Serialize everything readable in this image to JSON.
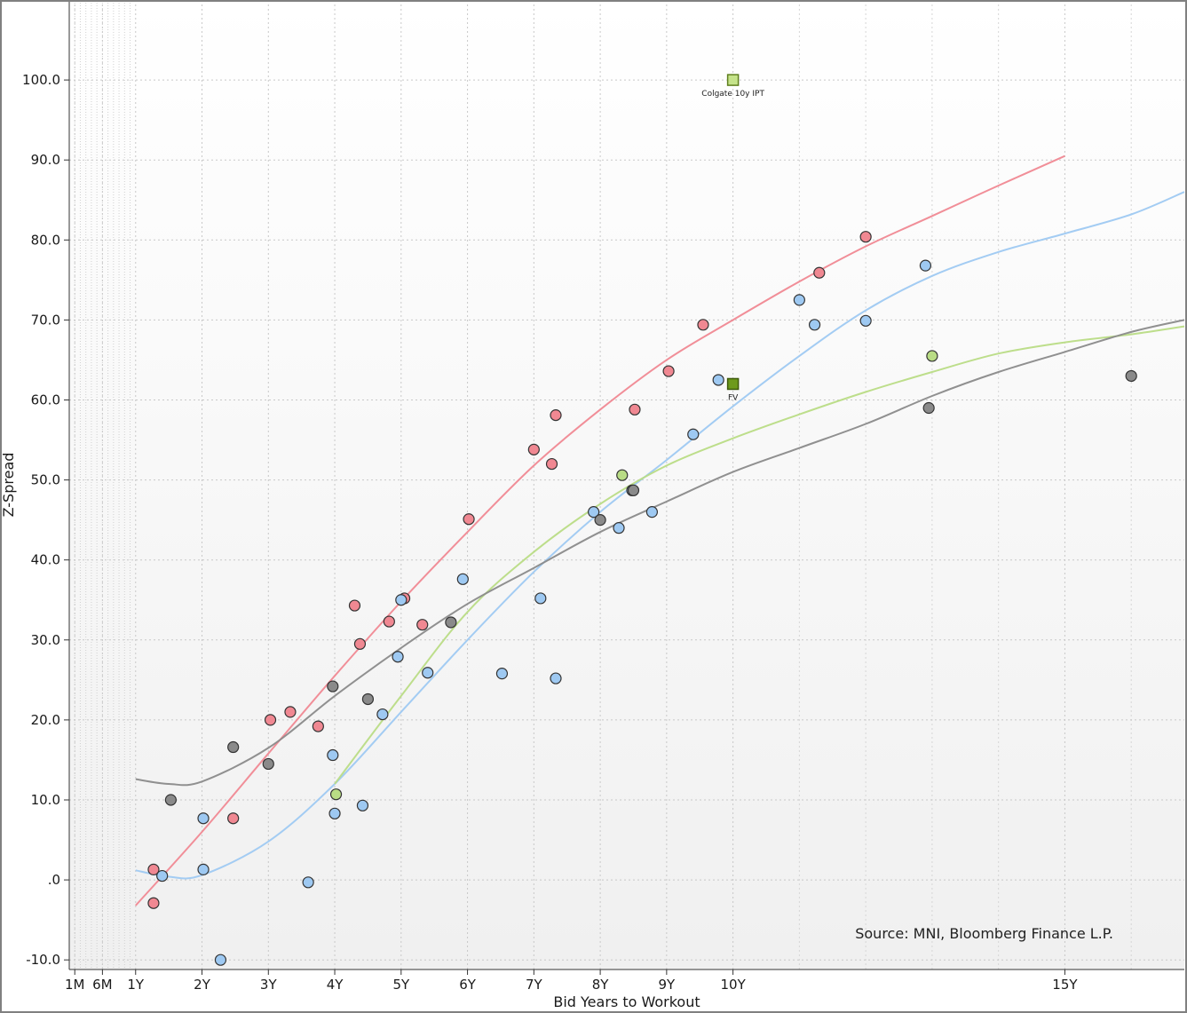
{
  "chart_data": {
    "type": "scatter",
    "title": "",
    "xlabel": "Bid Years to Workout",
    "ylabel": "Z-Spread",
    "xlim": [
      0,
      16.8
    ],
    "ylim": [
      -11.2,
      110
    ],
    "x_ticks": [
      {
        "value": 0.0833,
        "label": "1M"
      },
      {
        "value": 0.5,
        "label": "6M"
      },
      {
        "value": 1,
        "label": "1Y"
      },
      {
        "value": 2,
        "label": "2Y"
      },
      {
        "value": 3,
        "label": "3Y"
      },
      {
        "value": 4,
        "label": "4Y"
      },
      {
        "value": 5,
        "label": "5Y"
      },
      {
        "value": 6,
        "label": "6Y"
      },
      {
        "value": 7,
        "label": "7Y"
      },
      {
        "value": 8,
        "label": "8Y"
      },
      {
        "value": 9,
        "label": "9Y"
      },
      {
        "value": 10,
        "label": "10Y"
      },
      {
        "value": 15,
        "label": "15Y"
      }
    ],
    "y_ticks": [
      {
        "value": -10,
        "label": "-10.0"
      },
      {
        "value": 0,
        "label": ".0"
      },
      {
        "value": 10,
        "label": "10.0"
      },
      {
        "value": 20,
        "label": "20.0"
      },
      {
        "value": 30,
        "label": "30.0"
      },
      {
        "value": 40,
        "label": "40.0"
      },
      {
        "value": 50,
        "label": "50.0"
      },
      {
        "value": 60,
        "label": "60.0"
      },
      {
        "value": 70,
        "label": "70.0"
      },
      {
        "value": 80,
        "label": "80.0"
      },
      {
        "value": 90,
        "label": "90.0"
      },
      {
        "value": 100,
        "label": "100.0"
      }
    ],
    "grid": true,
    "series": [
      {
        "color": "#f08892",
        "points": [
          [
            1.27,
            1.3
          ],
          [
            1.27,
            -2.9
          ],
          [
            2.47,
            7.7
          ],
          [
            3.03,
            20.0
          ],
          [
            3.33,
            21.0
          ],
          [
            3.75,
            19.2
          ],
          [
            4.3,
            34.3
          ],
          [
            4.38,
            29.5
          ],
          [
            4.82,
            32.3
          ],
          [
            5.05,
            35.2
          ],
          [
            5.32,
            31.9
          ],
          [
            6.02,
            45.1
          ],
          [
            7.0,
            53.8
          ],
          [
            7.27,
            52.0
          ],
          [
            7.33,
            58.1
          ],
          [
            8.52,
            58.8
          ],
          [
            9.03,
            63.6
          ],
          [
            9.55,
            69.4
          ],
          [
            11.3,
            75.9
          ],
          [
            12.0,
            80.4
          ]
        ],
        "fit": [
          [
            1.0,
            -3.2
          ],
          [
            2.0,
            6.0
          ],
          [
            3.0,
            15.8
          ],
          [
            4.0,
            25.5
          ],
          [
            5.0,
            34.8
          ],
          [
            6.0,
            43.5
          ],
          [
            7.0,
            51.8
          ],
          [
            8.0,
            58.8
          ],
          [
            9.0,
            65.0
          ],
          [
            10.0,
            70.0
          ],
          [
            11.0,
            74.8
          ],
          [
            12.0,
            79.2
          ],
          [
            13.0,
            83.0
          ],
          [
            14.0,
            86.8
          ],
          [
            15.0,
            90.5
          ]
        ]
      },
      {
        "color": "#9ec9f2",
        "points": [
          [
            1.4,
            0.5
          ],
          [
            2.02,
            7.7
          ],
          [
            2.02,
            1.3
          ],
          [
            2.28,
            -10.0
          ],
          [
            3.6,
            -0.3
          ],
          [
            3.97,
            15.6
          ],
          [
            4.0,
            8.3
          ],
          [
            4.42,
            9.3
          ],
          [
            4.72,
            20.7
          ],
          [
            4.95,
            27.9
          ],
          [
            5.0,
            35.0
          ],
          [
            5.4,
            25.9
          ],
          [
            5.93,
            37.6
          ],
          [
            6.52,
            25.8
          ],
          [
            7.1,
            35.2
          ],
          [
            7.33,
            25.2
          ],
          [
            7.9,
            46.0
          ],
          [
            8.28,
            44.0
          ],
          [
            8.48,
            48.7
          ],
          [
            8.78,
            46.0
          ],
          [
            9.4,
            55.7
          ],
          [
            9.78,
            62.5
          ],
          [
            11.0,
            72.5
          ],
          [
            11.23,
            69.4
          ],
          [
            12.0,
            69.9
          ],
          [
            12.9,
            76.8
          ]
        ],
        "fit": [
          [
            1.0,
            1.2
          ],
          [
            1.5,
            0.4
          ],
          [
            2.0,
            0.6
          ],
          [
            3.0,
            4.8
          ],
          [
            4.0,
            12.0
          ],
          [
            5.0,
            21.0
          ],
          [
            6.0,
            30.0
          ],
          [
            7.0,
            38.5
          ],
          [
            8.0,
            46.0
          ],
          [
            9.0,
            52.5
          ],
          [
            10.0,
            59.2
          ],
          [
            11.0,
            65.5
          ],
          [
            12.0,
            71.2
          ],
          [
            13.0,
            75.5
          ],
          [
            14.0,
            78.5
          ],
          [
            15.0,
            80.8
          ],
          [
            16.0,
            83.2
          ],
          [
            16.8,
            86.0
          ]
        ]
      },
      {
        "color": "#b9dc85",
        "points": [
          [
            4.02,
            10.7
          ],
          [
            8.33,
            50.6
          ],
          [
            13.0,
            65.5
          ]
        ],
        "fit": [
          [
            4.0,
            12.0
          ],
          [
            5.0,
            23.0
          ],
          [
            6.0,
            33.5
          ],
          [
            7.0,
            41.0
          ],
          [
            8.0,
            47.0
          ],
          [
            9.0,
            51.8
          ],
          [
            10.0,
            55.2
          ],
          [
            11.0,
            58.2
          ],
          [
            12.0,
            61.0
          ],
          [
            13.0,
            63.5
          ],
          [
            14.0,
            65.8
          ],
          [
            15.0,
            67.2
          ],
          [
            16.0,
            68.2
          ],
          [
            16.8,
            69.2
          ]
        ]
      },
      {
        "color": "#8a8a8a",
        "points": [
          [
            1.53,
            10.0
          ],
          [
            2.47,
            16.6
          ],
          [
            3.0,
            14.5
          ],
          [
            3.97,
            24.2
          ],
          [
            4.5,
            22.6
          ],
          [
            5.75,
            32.2
          ],
          [
            8.0,
            45.0
          ],
          [
            8.5,
            48.7
          ],
          [
            12.95,
            59.0
          ],
          [
            16.0,
            63.0
          ]
        ],
        "fit": [
          [
            1.0,
            12.6
          ],
          [
            1.5,
            12.0
          ],
          [
            2.0,
            12.3
          ],
          [
            3.0,
            16.5
          ],
          [
            4.0,
            23.0
          ],
          [
            5.0,
            29.0
          ],
          [
            6.0,
            34.5
          ],
          [
            7.0,
            39.0
          ],
          [
            8.0,
            43.5
          ],
          [
            9.0,
            47.3
          ],
          [
            10.0,
            51.0
          ],
          [
            11.0,
            54.0
          ],
          [
            12.0,
            57.0
          ],
          [
            13.0,
            60.5
          ],
          [
            14.0,
            63.5
          ],
          [
            15.0,
            66.0
          ],
          [
            16.0,
            68.5
          ],
          [
            16.8,
            70.0
          ]
        ]
      }
    ],
    "highlights": [
      {
        "label": "Colgate 10y IPT",
        "x": 10.0,
        "y": 100.0,
        "fill": "#c5e38a",
        "stroke": "#5f7f1e"
      },
      {
        "label": "FV",
        "x": 10.0,
        "y": 62.0,
        "fill": "#6e9a1c",
        "stroke": "#3d5a0a"
      }
    ],
    "annotations": [
      "Source: MNI, Bloomberg Finance L.P."
    ]
  }
}
